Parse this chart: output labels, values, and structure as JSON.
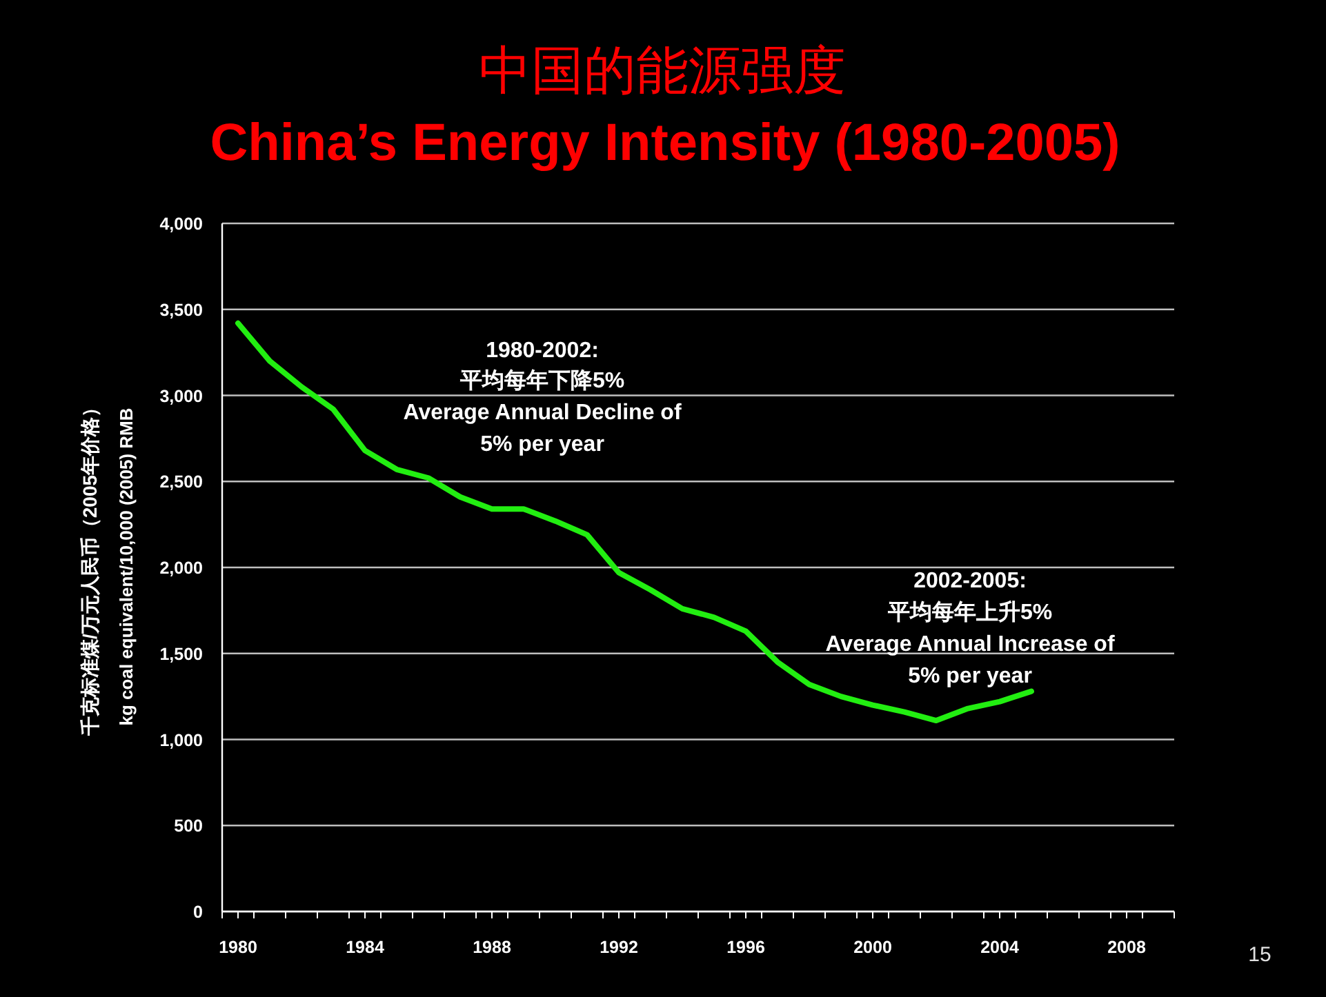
{
  "chart_data": {
    "type": "line",
    "title": "中国的能源强度",
    "subtitle": "China’s Energy Intensity (1980-2005)",
    "ylabel": "kg coal equivalent/10,000 (2005) RMB",
    "annotations": [
      "千克标准煤/万元人民币（2005年价格）",
      "1980-2002:",
      "平均每年下降5%",
      "Average Annual Decline of",
      "5% per year",
      "2002-2005:",
      "平均每年上升5%",
      "Average Annual Increase of",
      "5% per year",
      "15"
    ],
    "x": [
      1980,
      1981,
      1982,
      1983,
      1984,
      1985,
      1986,
      1987,
      1988,
      1989,
      1990,
      1991,
      1992,
      1993,
      1994,
      1995,
      1996,
      1997,
      1998,
      1999,
      2000,
      2001,
      2002,
      2003,
      2004,
      2005
    ],
    "series": [
      {
        "color": "#22ee11",
        "values": [
          3420,
          3200,
          3050,
          2920,
          2680,
          2570,
          2520,
          2410,
          2340,
          2340,
          2270,
          2190,
          1970,
          1870,
          1760,
          1710,
          1630,
          1450,
          1320,
          1250,
          1200,
          1160,
          1110,
          1180,
          1220,
          1280
        ]
      }
    ],
    "xlim": [
      1979.5,
      2009.5
    ],
    "xticks": [
      1980,
      1984,
      1988,
      1992,
      1996,
      2000,
      2004,
      2008,
      {
        "value": 1979.5,
        "label": null
      },
      {
        "value": 1980.5,
        "label": null
      },
      {
        "value": 1981.5,
        "label": null
      },
      {
        "value": 1982.5,
        "label": null
      },
      {
        "value": 1983.5,
        "label": null
      },
      {
        "value": 1984.5,
        "label": null
      },
      {
        "value": 1985.5,
        "label": null
      },
      {
        "value": 1986.5,
        "label": null
      },
      {
        "value": 1987.5,
        "label": null
      },
      {
        "value": 1988.5,
        "label": null
      },
      {
        "value": 1989.5,
        "label": null
      },
      {
        "value": 1990.5,
        "label": null
      },
      {
        "value": 1991.5,
        "label": null
      },
      {
        "value": 1992.5,
        "label": null
      },
      {
        "value": 1993.5,
        "label": null
      },
      {
        "value": 1994.5,
        "label": null
      },
      {
        "value": 1995.5,
        "label": null
      },
      {
        "value": 1996.5,
        "label": null
      },
      {
        "value": 1997.5,
        "label": null
      },
      {
        "value": 1998.5,
        "label": null
      },
      {
        "value": 1999.5,
        "label": null
      },
      {
        "value": 2000.5,
        "label": null
      },
      {
        "value": 2001.5,
        "label": null
      },
      {
        "value": 2002.5,
        "label": null
      },
      {
        "value": 2003.5,
        "label": null
      },
      {
        "value": 2004.5,
        "label": null
      },
      {
        "value": 2005.5,
        "label": null
      },
      {
        "value": 2006.5,
        "label": null
      },
      {
        "value": 2007.5,
        "label": null
      },
      {
        "value": 2008.5,
        "label": null
      },
      {
        "value": 2009.5,
        "label": null
      }
    ],
    "ylim": [
      0,
      4000
    ],
    "yticks": [
      {
        "value": 0,
        "label": "0"
      },
      {
        "value": 500,
        "label": "500"
      },
      {
        "value": 1000,
        "label": "1,000"
      },
      {
        "value": 1500,
        "label": "1,500"
      },
      {
        "value": 2000,
        "label": "2,000"
      },
      {
        "value": 2500,
        "label": "2,500"
      },
      {
        "value": 3000,
        "label": "3,000"
      },
      {
        "value": 3500,
        "label": "3,500"
      },
      {
        "value": 4000,
        "label": "4,000"
      }
    ],
    "grid": "y",
    "marker": "none",
    "line_style": "solid"
  }
}
